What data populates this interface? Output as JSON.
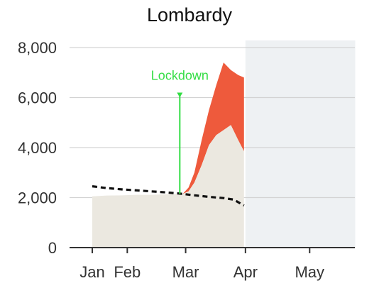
{
  "chart_data": {
    "type": "area",
    "title": "Lombardy",
    "xlabel": "",
    "ylabel": "",
    "x_ticks": [
      "Jan",
      "Feb",
      "Mar",
      "Apr",
      "May"
    ],
    "x_tick_days": [
      0,
      24,
      64,
      105,
      149
    ],
    "ylim": [
      0,
      8000
    ],
    "y_ticks": [
      0,
      2000,
      4000,
      6000,
      8000
    ],
    "y_tick_labels": [
      "0",
      "2,000",
      "4,000",
      "6,000",
      "8,000"
    ],
    "grid": true,
    "xlim_days": [
      0,
      180
    ],
    "series": [
      {
        "points": [
          [
            0,
            2050
          ],
          [
            10,
            2080
          ],
          [
            20,
            2090
          ],
          [
            30,
            2110
          ],
          [
            40,
            2110
          ],
          [
            50,
            2130
          ],
          [
            55,
            2140
          ],
          [
            62,
            2150
          ],
          [
            66,
            2250
          ],
          [
            70,
            2600
          ],
          [
            75,
            3300
          ],
          [
            80,
            4100
          ],
          [
            85,
            4500
          ],
          [
            90,
            4700
          ],
          [
            95,
            4900
          ],
          [
            100,
            4300
          ],
          [
            104,
            3850
          ]
        ],
        "color": "#ebe8e0"
      },
      {
        "points": [
          [
            62,
            2150
          ],
          [
            66,
            2400
          ],
          [
            70,
            3000
          ],
          [
            75,
            4300
          ],
          [
            80,
            5500
          ],
          [
            85,
            6500
          ],
          [
            90,
            7400
          ],
          [
            95,
            7100
          ],
          [
            100,
            6900
          ],
          [
            104,
            6800
          ]
        ],
        "color": "#ee5a3c"
      },
      {
        "points": [
          [
            0,
            2450
          ],
          [
            10,
            2380
          ],
          [
            20,
            2330
          ],
          [
            30,
            2290
          ],
          [
            40,
            2250
          ],
          [
            50,
            2210
          ],
          [
            60,
            2160
          ],
          [
            70,
            2090
          ],
          [
            80,
            2030
          ],
          [
            90,
            1980
          ],
          [
            97,
            1920
          ],
          [
            104,
            1680
          ]
        ],
        "color": "#111111",
        "style": "dashed"
      }
    ],
    "shaded_region": {
      "from_day": 105,
      "to_day": 180,
      "color": "#eef1f3"
    },
    "annotations": [
      {
        "label": "Lockdown",
        "day": 60,
        "y_top": 6200,
        "color": "#33dd44"
      }
    ]
  }
}
